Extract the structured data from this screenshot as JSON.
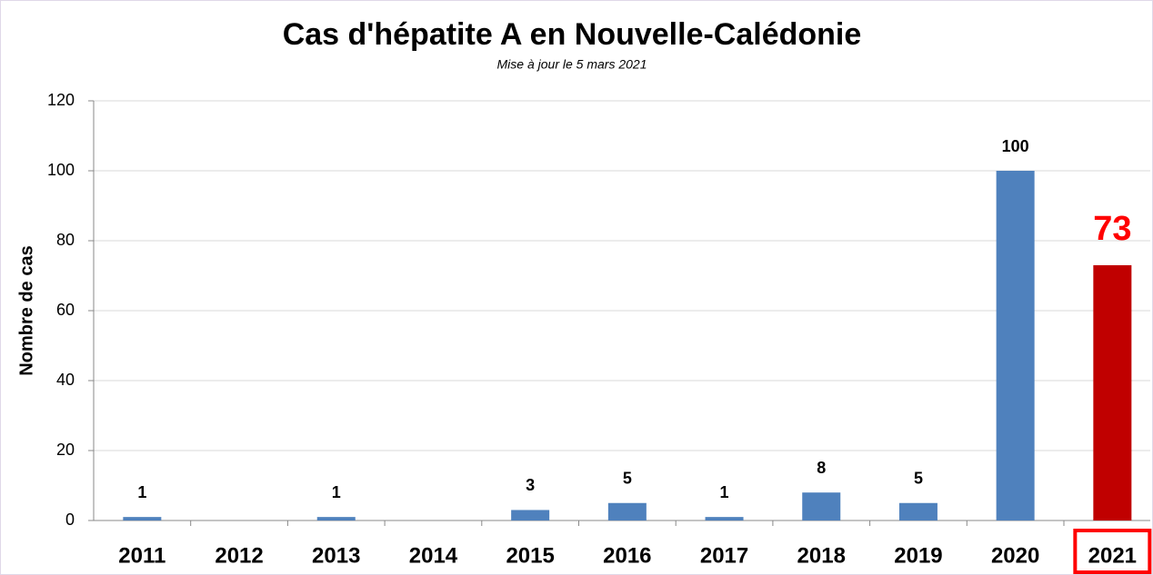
{
  "chart_data": {
    "type": "bar",
    "title": "Cas d'hépatite A en Nouvelle-Calédonie",
    "subtitle": "Mise à jour le 5 mars 2021",
    "y_label": "Nombre de cas",
    "categories": [
      "2011",
      "2012",
      "2013",
      "2014",
      "2015",
      "2016",
      "2017",
      "2018",
      "2019",
      "2020",
      "2021"
    ],
    "values": [
      1,
      0,
      1,
      0,
      3,
      5,
      1,
      8,
      5,
      100,
      73
    ],
    "colors": [
      "#4f81bd",
      "#4f81bd",
      "#4f81bd",
      "#4f81bd",
      "#4f81bd",
      "#4f81bd",
      "#4f81bd",
      "#4f81bd",
      "#4f81bd",
      "#4f81bd",
      "#c00000"
    ],
    "ylim": [
      0,
      120
    ],
    "yticks": [
      0,
      20,
      40,
      60,
      80,
      100,
      120
    ],
    "grid": true
  }
}
